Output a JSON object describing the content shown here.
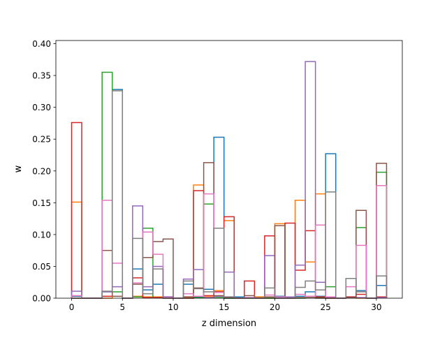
{
  "chart_data": {
    "type": "bar",
    "style": "step-histogram",
    "title": "",
    "xlabel": "z dimension",
    "ylabel": "w",
    "xlim": [
      -1.55,
      32.55
    ],
    "ylim": [
      0,
      0.405
    ],
    "x_ticks": [
      0,
      5,
      10,
      15,
      20,
      25,
      30
    ],
    "y_ticks": [
      0.0,
      0.05,
      0.1,
      0.15,
      0.2,
      0.25,
      0.3,
      0.35,
      0.4
    ],
    "grid": false,
    "legend": "none",
    "bin_start": 0,
    "bin_width": 1,
    "series": [
      {
        "color": "#1f77b4",
        "values": [
          0.003,
          0,
          0,
          0.01,
          0.328,
          0,
          0.046,
          0.013,
          0.022,
          0.002,
          0,
          0.022,
          0.002,
          0.014,
          0.253,
          0,
          0.002,
          0,
          0.002,
          0,
          0.003,
          0,
          0.003,
          0.01,
          0.003,
          0.227,
          0,
          0.002,
          0.012,
          0,
          0.02
        ]
      },
      {
        "color": "#ff7f0e",
        "values": [
          0.151,
          0,
          0,
          0,
          0.003,
          0,
          0.003,
          0.002,
          0.002,
          0.002,
          0,
          0.002,
          0.178,
          0.002,
          0.012,
          0.122,
          0,
          0,
          0.002,
          0,
          0.117,
          0,
          0.154,
          0.057,
          0.164,
          0.001,
          0,
          0.001,
          0,
          0,
          0.001
        ]
      },
      {
        "color": "#2ca02c",
        "values": [
          0,
          0,
          0,
          0.355,
          0.01,
          0,
          0.002,
          0.11,
          0.001,
          0,
          0,
          0,
          0.001,
          0.148,
          0.001,
          0,
          0,
          0,
          0,
          0,
          0,
          0,
          0,
          0.001,
          0.001,
          0.018,
          0,
          0.001,
          0.111,
          0,
          0.198
        ]
      },
      {
        "color": "#d62728",
        "values": [
          0.276,
          0,
          0,
          0.003,
          0.003,
          0,
          0.032,
          0.001,
          0.001,
          0,
          0,
          0,
          0.169,
          0.004,
          0.01,
          0.128,
          0,
          0.027,
          0,
          0.098,
          0,
          0.118,
          0.044,
          0.106,
          0.002,
          0,
          0,
          0.002,
          0.006,
          0,
          0.002
        ]
      },
      {
        "color": "#9467bd",
        "values": [
          0.011,
          0,
          0,
          0.01,
          0.018,
          0,
          0.145,
          0.018,
          0.05,
          0.002,
          0,
          0.03,
          0.045,
          0.001,
          0.003,
          0.041,
          0,
          0.001,
          0,
          0.067,
          0,
          0.002,
          0.052,
          0.372,
          0.025,
          0.001,
          0,
          0.001,
          0.001,
          0,
          0.001
        ]
      },
      {
        "color": "#8c564b",
        "values": [
          0,
          0,
          0,
          0.075,
          0.003,
          0,
          0.022,
          0.064,
          0.089,
          0.093,
          0,
          0.002,
          0.016,
          0.213,
          0.004,
          0.001,
          0,
          0.004,
          0,
          0.002,
          0.114,
          0,
          0.001,
          0.001,
          0,
          0,
          0,
          0.001,
          0.138,
          0,
          0.212
        ]
      },
      {
        "color": "#e377c2",
        "values": [
          0.004,
          0,
          0,
          0.154,
          0.055,
          0,
          0.024,
          0.104,
          0.069,
          0.001,
          0,
          0.007,
          0.003,
          0.164,
          0.009,
          0.002,
          0,
          0.001,
          0,
          0.005,
          0.002,
          0,
          0.006,
          0.003,
          0.115,
          0.002,
          0,
          0.018,
          0.083,
          0,
          0.177
        ]
      },
      {
        "color": "#7f7f7f",
        "values": [
          0,
          0,
          0,
          0.011,
          0.326,
          0,
          0.094,
          0.007,
          0.046,
          0,
          0,
          0.027,
          0.015,
          0.01,
          0.11,
          0.002,
          0,
          0,
          0,
          0.016,
          0,
          0,
          0.017,
          0.027,
          0.013,
          0.167,
          0,
          0.031,
          0.01,
          0,
          0.035
        ]
      }
    ]
  }
}
